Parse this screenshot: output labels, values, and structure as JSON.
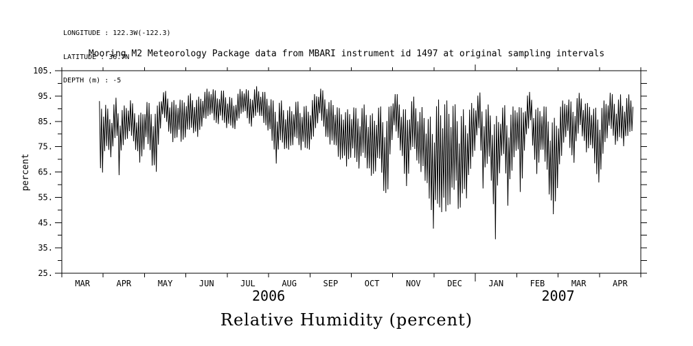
{
  "meta": {
    "lines": [
      "LONGITUDE : 122.3W(-122.3)",
      "LATITUDE : 36.7N",
      "DEPTH (m) : -5"
    ]
  },
  "chart_data": {
    "type": "line",
    "title": "Mooring M2 Meteorology Package data from MBARI instrument id 1497 at original sampling intervals",
    "caption": "Relative Humidity (percent)",
    "ylabel": "percent",
    "ylim": [
      25,
      105
    ],
    "grid": false,
    "line_color": "#000000",
    "background": "#ffffff",
    "ytick_major_values": [
      105,
      95,
      85,
      75,
      65,
      55,
      45,
      35,
      25
    ],
    "ytick_major_labels": [
      "105.",
      "95.",
      "85.",
      "75.",
      "65.",
      "55.",
      "45.",
      "35.",
      "25."
    ],
    "ytick_minor_values": [
      100,
      90,
      80,
      70,
      60,
      50,
      40,
      30
    ],
    "x_axis": {
      "months": [
        "MAR",
        "APR",
        "MAY",
        "JUN",
        "JUL",
        "AUG",
        "SEP",
        "OCT",
        "NOV",
        "DEC",
        "JAN",
        "FEB",
        "MAR",
        "APR"
      ],
      "years": [
        {
          "label": "2006",
          "center_month": 5
        },
        {
          "label": "2007",
          "center_month": 12
        }
      ],
      "total_months": 14,
      "year_boundary_index": 10
    },
    "series": {
      "name": "relative-humidity",
      "x_unit": "months_since_2006-03-01",
      "note": "dense high-frequency record downsampled to [month, min%, max%] envelope",
      "envelope_points": [
        [
          0.91,
          66,
          93
        ],
        [
          0.97,
          63,
          95
        ],
        [
          1.03,
          70,
          94
        ],
        [
          1.09,
          75,
          91
        ],
        [
          1.15,
          72,
          88
        ],
        [
          1.21,
          70,
          90
        ],
        [
          1.27,
          77,
          93
        ],
        [
          1.33,
          80,
          95
        ],
        [
          1.38,
          63,
          89
        ],
        [
          1.44,
          72,
          90
        ],
        [
          1.5,
          76,
          91
        ],
        [
          1.58,
          78,
          93
        ],
        [
          1.66,
          80,
          94
        ],
        [
          1.74,
          76,
          91
        ],
        [
          1.82,
          72,
          89
        ],
        [
          1.9,
          67,
          88
        ],
        [
          1.97,
          73,
          91
        ],
        [
          2.04,
          77,
          94
        ],
        [
          2.12,
          74,
          92
        ],
        [
          2.2,
          66,
          90
        ],
        [
          2.28,
          63,
          89
        ],
        [
          2.36,
          80,
          95
        ],
        [
          2.44,
          87,
          97
        ],
        [
          2.52,
          85,
          97
        ],
        [
          2.6,
          80,
          95
        ],
        [
          2.68,
          76,
          93
        ],
        [
          2.76,
          78,
          94
        ],
        [
          2.84,
          80,
          95
        ],
        [
          2.9,
          75,
          93
        ],
        [
          2.96,
          78,
          95
        ],
        [
          3.04,
          80,
          96
        ],
        [
          3.12,
          82,
          96
        ],
        [
          3.2,
          80,
          95
        ],
        [
          3.28,
          78,
          94
        ],
        [
          3.36,
          82,
          96
        ],
        [
          3.44,
          85,
          97
        ],
        [
          3.52,
          86,
          98
        ],
        [
          3.6,
          88,
          99
        ],
        [
          3.68,
          85,
          98
        ],
        [
          3.76,
          83,
          96
        ],
        [
          3.84,
          86,
          98
        ],
        [
          3.92,
          84,
          97
        ],
        [
          4.0,
          82,
          96
        ],
        [
          4.08,
          83,
          95
        ],
        [
          4.16,
          81,
          93
        ],
        [
          4.24,
          84,
          96
        ],
        [
          4.32,
          87,
          98
        ],
        [
          4.4,
          89,
          99
        ],
        [
          4.48,
          86,
          98
        ],
        [
          4.56,
          82,
          96
        ],
        [
          4.64,
          85,
          98
        ],
        [
          4.72,
          88,
          99
        ],
        [
          4.8,
          87,
          98
        ],
        [
          4.88,
          84,
          97
        ],
        [
          4.96,
          82,
          96
        ],
        [
          5.04,
          80,
          95
        ],
        [
          5.12,
          74,
          93
        ],
        [
          5.2,
          67,
          91
        ],
        [
          5.28,
          77,
          94
        ],
        [
          5.36,
          75,
          92
        ],
        [
          5.44,
          72,
          90
        ],
        [
          5.52,
          74,
          91
        ],
        [
          5.6,
          76,
          92
        ],
        [
          5.68,
          78,
          94
        ],
        [
          5.76,
          73,
          91
        ],
        [
          5.84,
          75,
          92
        ],
        [
          5.92,
          73,
          91
        ],
        [
          6.0,
          74,
          92
        ],
        [
          6.08,
          78,
          95
        ],
        [
          6.16,
          83,
          97
        ],
        [
          6.24,
          87,
          99
        ],
        [
          6.32,
          83,
          97
        ],
        [
          6.4,
          78,
          95
        ],
        [
          6.48,
          75,
          93
        ],
        [
          6.56,
          77,
          94
        ],
        [
          6.64,
          73,
          92
        ],
        [
          6.72,
          68,
          90
        ],
        [
          6.8,
          71,
          92
        ],
        [
          6.88,
          66,
          89
        ],
        [
          6.96,
          70,
          91
        ],
        [
          7.04,
          72,
          92
        ],
        [
          7.12,
          68,
          90
        ],
        [
          7.2,
          66,
          89
        ],
        [
          7.28,
          72,
          92
        ],
        [
          7.36,
          68,
          91
        ],
        [
          7.44,
          63,
          89
        ],
        [
          7.52,
          62,
          88
        ],
        [
          7.6,
          66,
          90
        ],
        [
          7.68,
          70,
          92
        ],
        [
          7.76,
          60,
          89
        ],
        [
          7.86,
          50,
          87
        ],
        [
          7.94,
          72,
          93
        ],
        [
          8.02,
          82,
          97
        ],
        [
          8.1,
          80,
          96
        ],
        [
          8.18,
          74,
          94
        ],
        [
          8.26,
          66,
          91
        ],
        [
          8.34,
          57,
          89
        ],
        [
          8.42,
          70,
          93
        ],
        [
          8.5,
          75,
          95
        ],
        [
          8.58,
          70,
          93
        ],
        [
          8.66,
          63,
          90
        ],
        [
          8.74,
          66,
          91
        ],
        [
          8.82,
          58,
          88
        ],
        [
          8.9,
          52,
          87
        ],
        [
          8.98,
          42,
          86
        ],
        [
          9.06,
          52,
          93
        ],
        [
          9.14,
          48,
          94
        ],
        [
          9.22,
          50,
          95
        ],
        [
          9.3,
          47,
          93
        ],
        [
          9.38,
          52,
          95
        ],
        [
          9.46,
          55,
          93
        ],
        [
          9.54,
          60,
          91
        ],
        [
          9.62,
          43,
          88
        ],
        [
          9.7,
          58,
          90
        ],
        [
          9.78,
          54,
          88
        ],
        [
          9.86,
          63,
          91
        ],
        [
          9.94,
          70,
          93
        ],
        [
          10.02,
          76,
          95
        ],
        [
          10.1,
          83,
          97
        ],
        [
          10.18,
          58,
          92
        ],
        [
          10.26,
          66,
          91
        ],
        [
          10.34,
          70,
          92
        ],
        [
          10.42,
          55,
          88
        ],
        [
          10.47,
          30,
          86
        ],
        [
          10.54,
          60,
          88
        ],
        [
          10.62,
          68,
          91
        ],
        [
          10.7,
          72,
          92
        ],
        [
          10.78,
          51,
          87
        ],
        [
          10.86,
          62,
          89
        ],
        [
          10.94,
          70,
          92
        ],
        [
          11.02,
          76,
          94
        ],
        [
          11.1,
          51,
          90
        ],
        [
          11.18,
          73,
          93
        ],
        [
          11.26,
          80,
          96
        ],
        [
          11.34,
          85,
          97
        ],
        [
          11.42,
          68,
          92
        ],
        [
          11.5,
          62,
          90
        ],
        [
          11.58,
          74,
          93
        ],
        [
          11.66,
          70,
          92
        ],
        [
          11.74,
          64,
          90
        ],
        [
          11.82,
          50,
          87
        ],
        [
          11.9,
          46,
          86
        ],
        [
          11.98,
          58,
          89
        ],
        [
          12.06,
          68,
          92
        ],
        [
          12.14,
          76,
          94
        ],
        [
          12.22,
          81,
          96
        ],
        [
          12.3,
          72,
          93
        ],
        [
          12.38,
          68,
          92
        ],
        [
          12.46,
          78,
          95
        ],
        [
          12.54,
          83,
          97
        ],
        [
          12.62,
          76,
          94
        ],
        [
          12.7,
          71,
          92
        ],
        [
          12.78,
          76,
          94
        ],
        [
          12.86,
          70,
          91
        ],
        [
          12.94,
          62,
          90
        ],
        [
          13.02,
          60,
          90
        ],
        [
          13.1,
          74,
          93
        ],
        [
          13.18,
          78,
          95
        ],
        [
          13.26,
          83,
          97
        ],
        [
          13.34,
          78,
          95
        ],
        [
          13.42,
          74,
          93
        ],
        [
          13.5,
          79,
          96
        ],
        [
          13.58,
          75,
          93
        ],
        [
          13.66,
          78,
          95
        ],
        [
          13.74,
          80,
          96
        ],
        [
          13.82,
          82,
          94
        ]
      ]
    }
  }
}
